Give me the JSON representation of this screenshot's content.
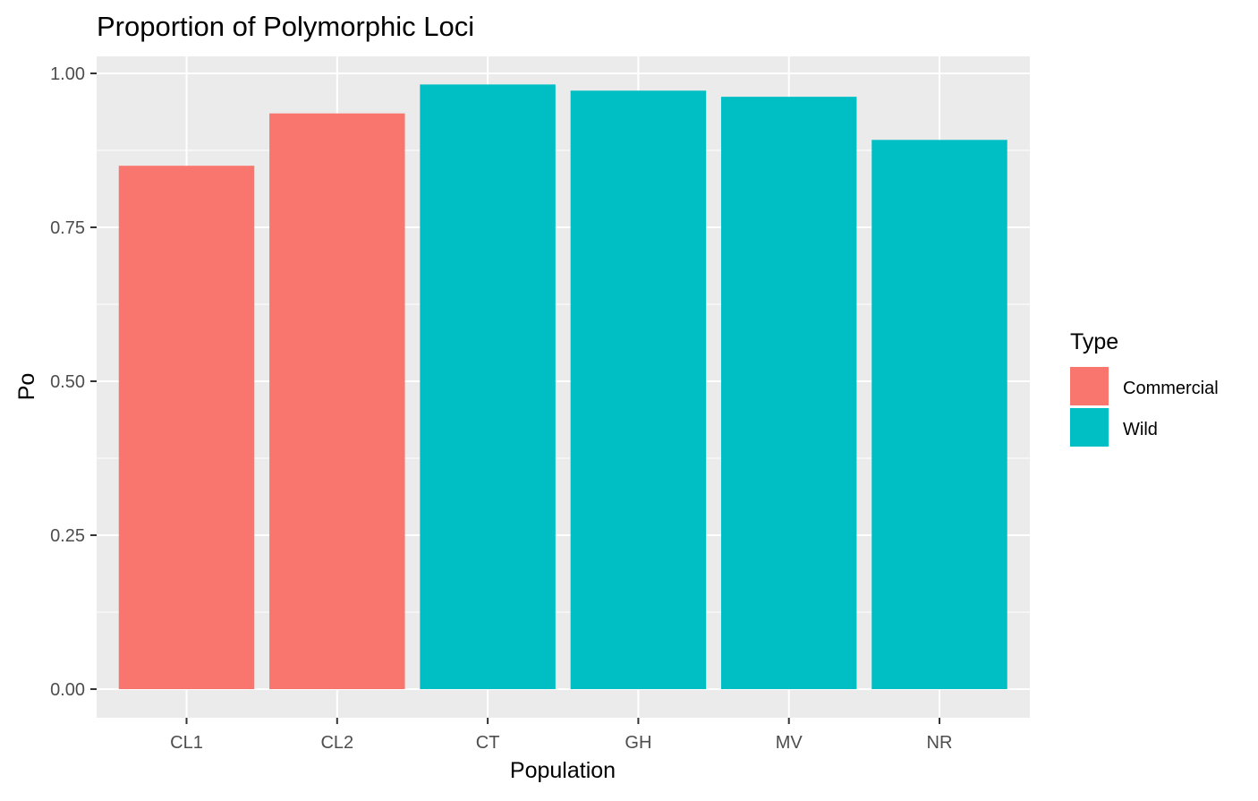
{
  "chart_data": {
    "type": "bar",
    "title": "Proportion of Polymorphic Loci",
    "xlabel": "Population",
    "ylabel": "Po",
    "categories": [
      "CL1",
      "CL2",
      "CT",
      "GH",
      "MV",
      "NR"
    ],
    "values": [
      0.85,
      0.935,
      0.982,
      0.972,
      0.962,
      0.892
    ],
    "groups": [
      "Commercial",
      "Commercial",
      "Wild",
      "Wild",
      "Wild",
      "Wild"
    ],
    "ylim": [
      0,
      1
    ],
    "yticks": [
      0,
      0.25,
      0.5,
      0.75,
      1
    ],
    "ytick_labels": [
      "0.00",
      "0.25",
      "0.50",
      "0.75",
      "1.00"
    ],
    "grid": true,
    "legend": {
      "title": "Type",
      "placement": "right",
      "entries": [
        {
          "name": "Commercial",
          "color": "#F8766D"
        },
        {
          "name": "Wild",
          "color": "#00BFC4"
        }
      ]
    },
    "colors": {
      "panel_background": "#EBEBEB",
      "grid": "#FFFFFF",
      "tick": "#333333"
    }
  }
}
